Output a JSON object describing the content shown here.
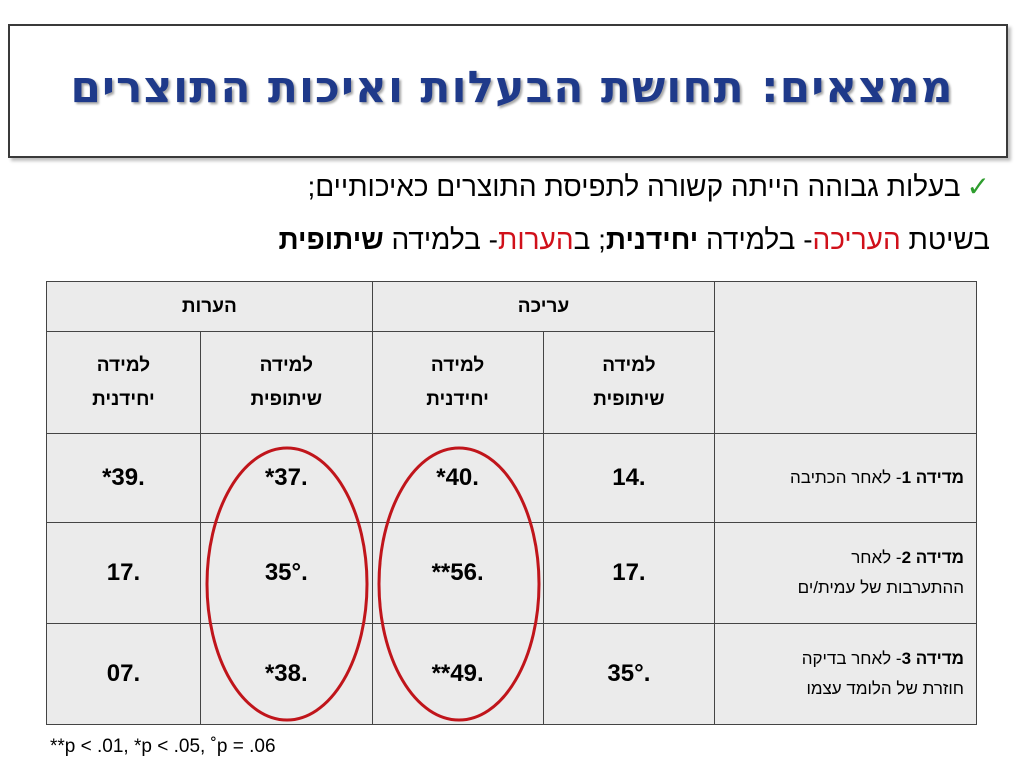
{
  "title": "ממצאים: תחושת הבעלות ואיכות התוצרים",
  "line1": {
    "check_icon": "checkmark-icon",
    "text": "בעלות גבוהה הייתה קשורה לתפיסת התוצרים כאיכותיים;"
  },
  "line2": {
    "p1": "בשיטת ",
    "p2": "העריכה",
    "p3": "- בלמידה ",
    "p4": "יחידנית",
    "p5": "; ב",
    "p6": "הערות",
    "p7": "- בלמידה ",
    "p8": "שיתופית"
  },
  "table": {
    "groups": [
      "עריכה",
      "הערות"
    ],
    "sub_line1": [
      "למידה",
      "למידה",
      "למידה",
      "למידה"
    ],
    "sub_line2": [
      "שיתופית",
      "יחידנית",
      "שיתופית",
      "יחידנית"
    ],
    "rows": [
      {
        "label_bold": "מדידה 1",
        "label_rest": "- לאחר הכתיבה",
        "label_line2": "",
        "values": [
          ".14",
          ".40*",
          ".37*",
          ".39*"
        ]
      },
      {
        "label_bold": "מדידה 2",
        "label_rest": "- לאחר",
        "label_line2": "ההתערבות של עמית/ים",
        "values": [
          ".17",
          ".56**",
          ".35°",
          ".17"
        ]
      },
      {
        "label_bold": "מדידה 3",
        "label_rest": "- לאחר בדיקה",
        "label_line2": "חוזרת של הלומד עצמו",
        "values": [
          ".35°",
          ".49**",
          ".38*",
          ".07"
        ]
      }
    ]
  },
  "footnote": "**p < .01, *p < .05, ˚p = .06",
  "colors": {
    "title": "#1f3a8a",
    "highlight": "#d0101a",
    "check": "#2e9d2e",
    "ellipse": "#c0151b"
  }
}
